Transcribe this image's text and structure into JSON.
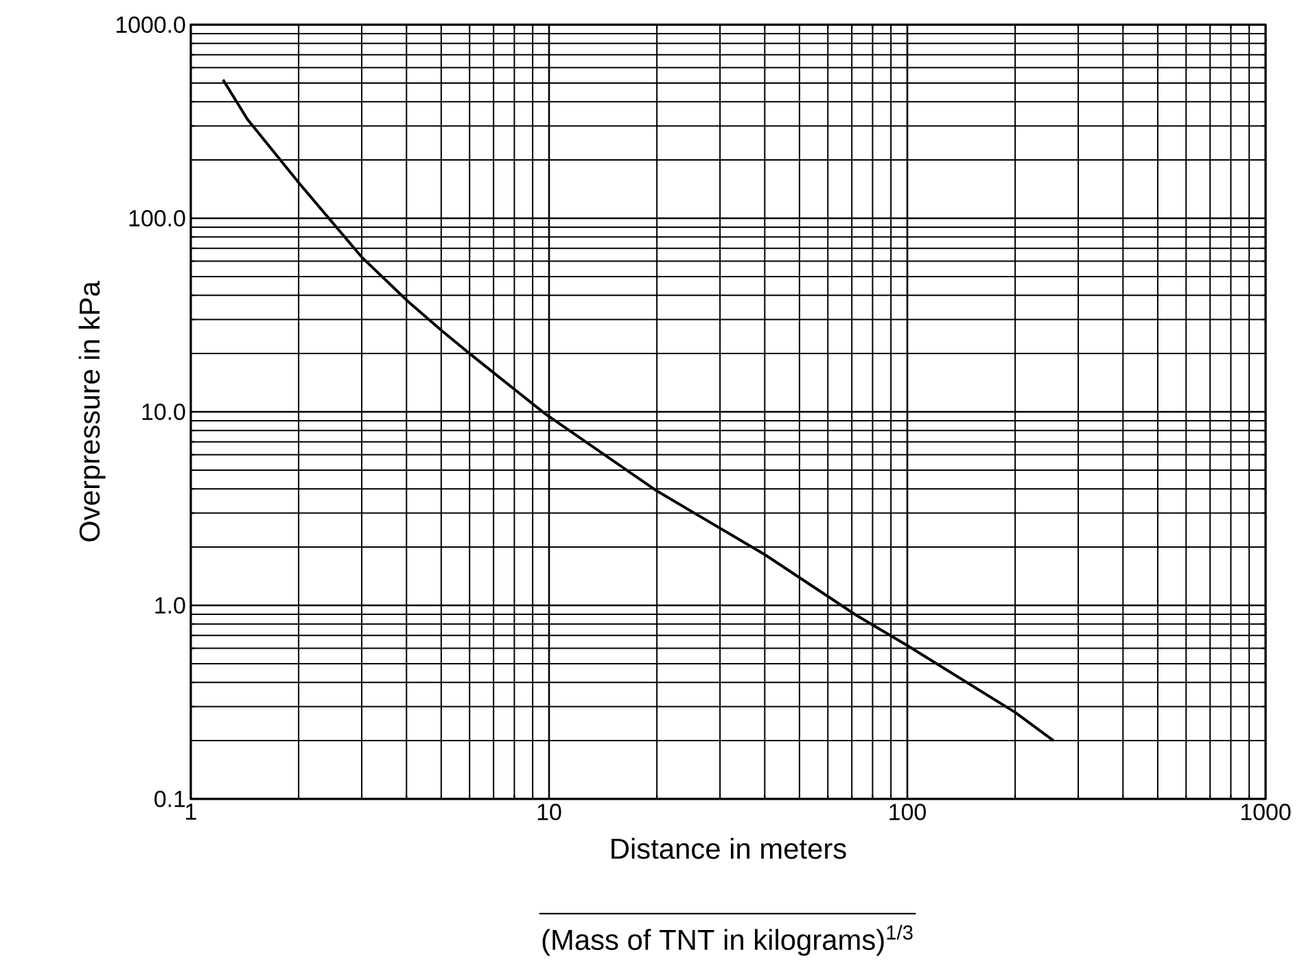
{
  "chart_data": {
    "type": "line",
    "xlabel": "Distance in meters",
    "ylabel": "Overpressure in kPa",
    "annotations": [
      "(Mass of TNT in kilograms)$^{1/3}$"
    ],
    "log": "xy",
    "xlim": [
      1,
      1000
    ],
    "ylim": [
      0.1,
      1000
    ],
    "xticks": [
      1,
      10,
      100,
      1000
    ],
    "yticks": [
      {
        "value": 0.1,
        "label": "0.1"
      },
      {
        "value": 1,
        "label": "1.0"
      },
      {
        "value": 10,
        "label": "10.0"
      },
      {
        "value": 100,
        "label": "100.0"
      },
      {
        "value": 1000,
        "label": "1000.0"
      }
    ],
    "grid": true,
    "marker": "none",
    "line_style": "solid",
    "series": [
      {
        "color": "#000000",
        "x": [
          1.23,
          1.44,
          2.0,
          3.0,
          4.05,
          5.05,
          6.0,
          9.8,
          20,
          40,
          72,
          100,
          200,
          256
        ],
        "values": [
          520,
          324,
          153,
          63,
          37,
          26,
          20,
          9.7,
          3.9,
          1.83,
          0.89,
          0.62,
          0.28,
          0.2
        ]
      }
    ]
  }
}
